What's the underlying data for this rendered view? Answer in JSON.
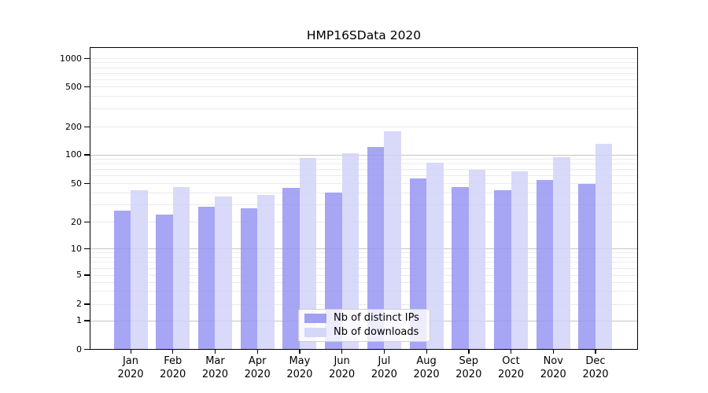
{
  "chart_data": {
    "type": "bar",
    "title": "HMP16SData 2020",
    "categories": [
      "Jan",
      "Feb",
      "Mar",
      "Apr",
      "May",
      "Jun",
      "Jul",
      "Aug",
      "Sep",
      "Oct",
      "Nov",
      "Dec"
    ],
    "x_year": "2020",
    "series": [
      {
        "name": "Nb of distinct IPs",
        "color": "#9696f2",
        "values": [
          26,
          24,
          29,
          28,
          45,
          40,
          122,
          57,
          46,
          43,
          54,
          50
        ]
      },
      {
        "name": "Nb of downloads",
        "color": "#d2d2f8",
        "values": [
          43,
          46,
          37,
          38,
          92,
          104,
          180,
          82,
          70,
          67,
          94,
          132
        ]
      }
    ],
    "y_axis": {
      "scale": "symlog",
      "ticks": [
        0,
        1,
        2,
        5,
        10,
        20,
        50,
        100,
        200,
        500,
        1000
      ],
      "major_gridlines": [
        1,
        10,
        100
      ],
      "range_top": 1000
    },
    "legend": {
      "position": "inside-bottom-center",
      "entries": [
        "Nb of distinct IPs",
        "Nb of downloads"
      ]
    },
    "grid": "horizontal",
    "colors": {
      "bar_dark": "#9696f2",
      "bar_light": "#d2d2f8",
      "major_grid": "#c4c4c4",
      "minor_grid": "#ebebeb",
      "axis": "#000000"
    }
  }
}
